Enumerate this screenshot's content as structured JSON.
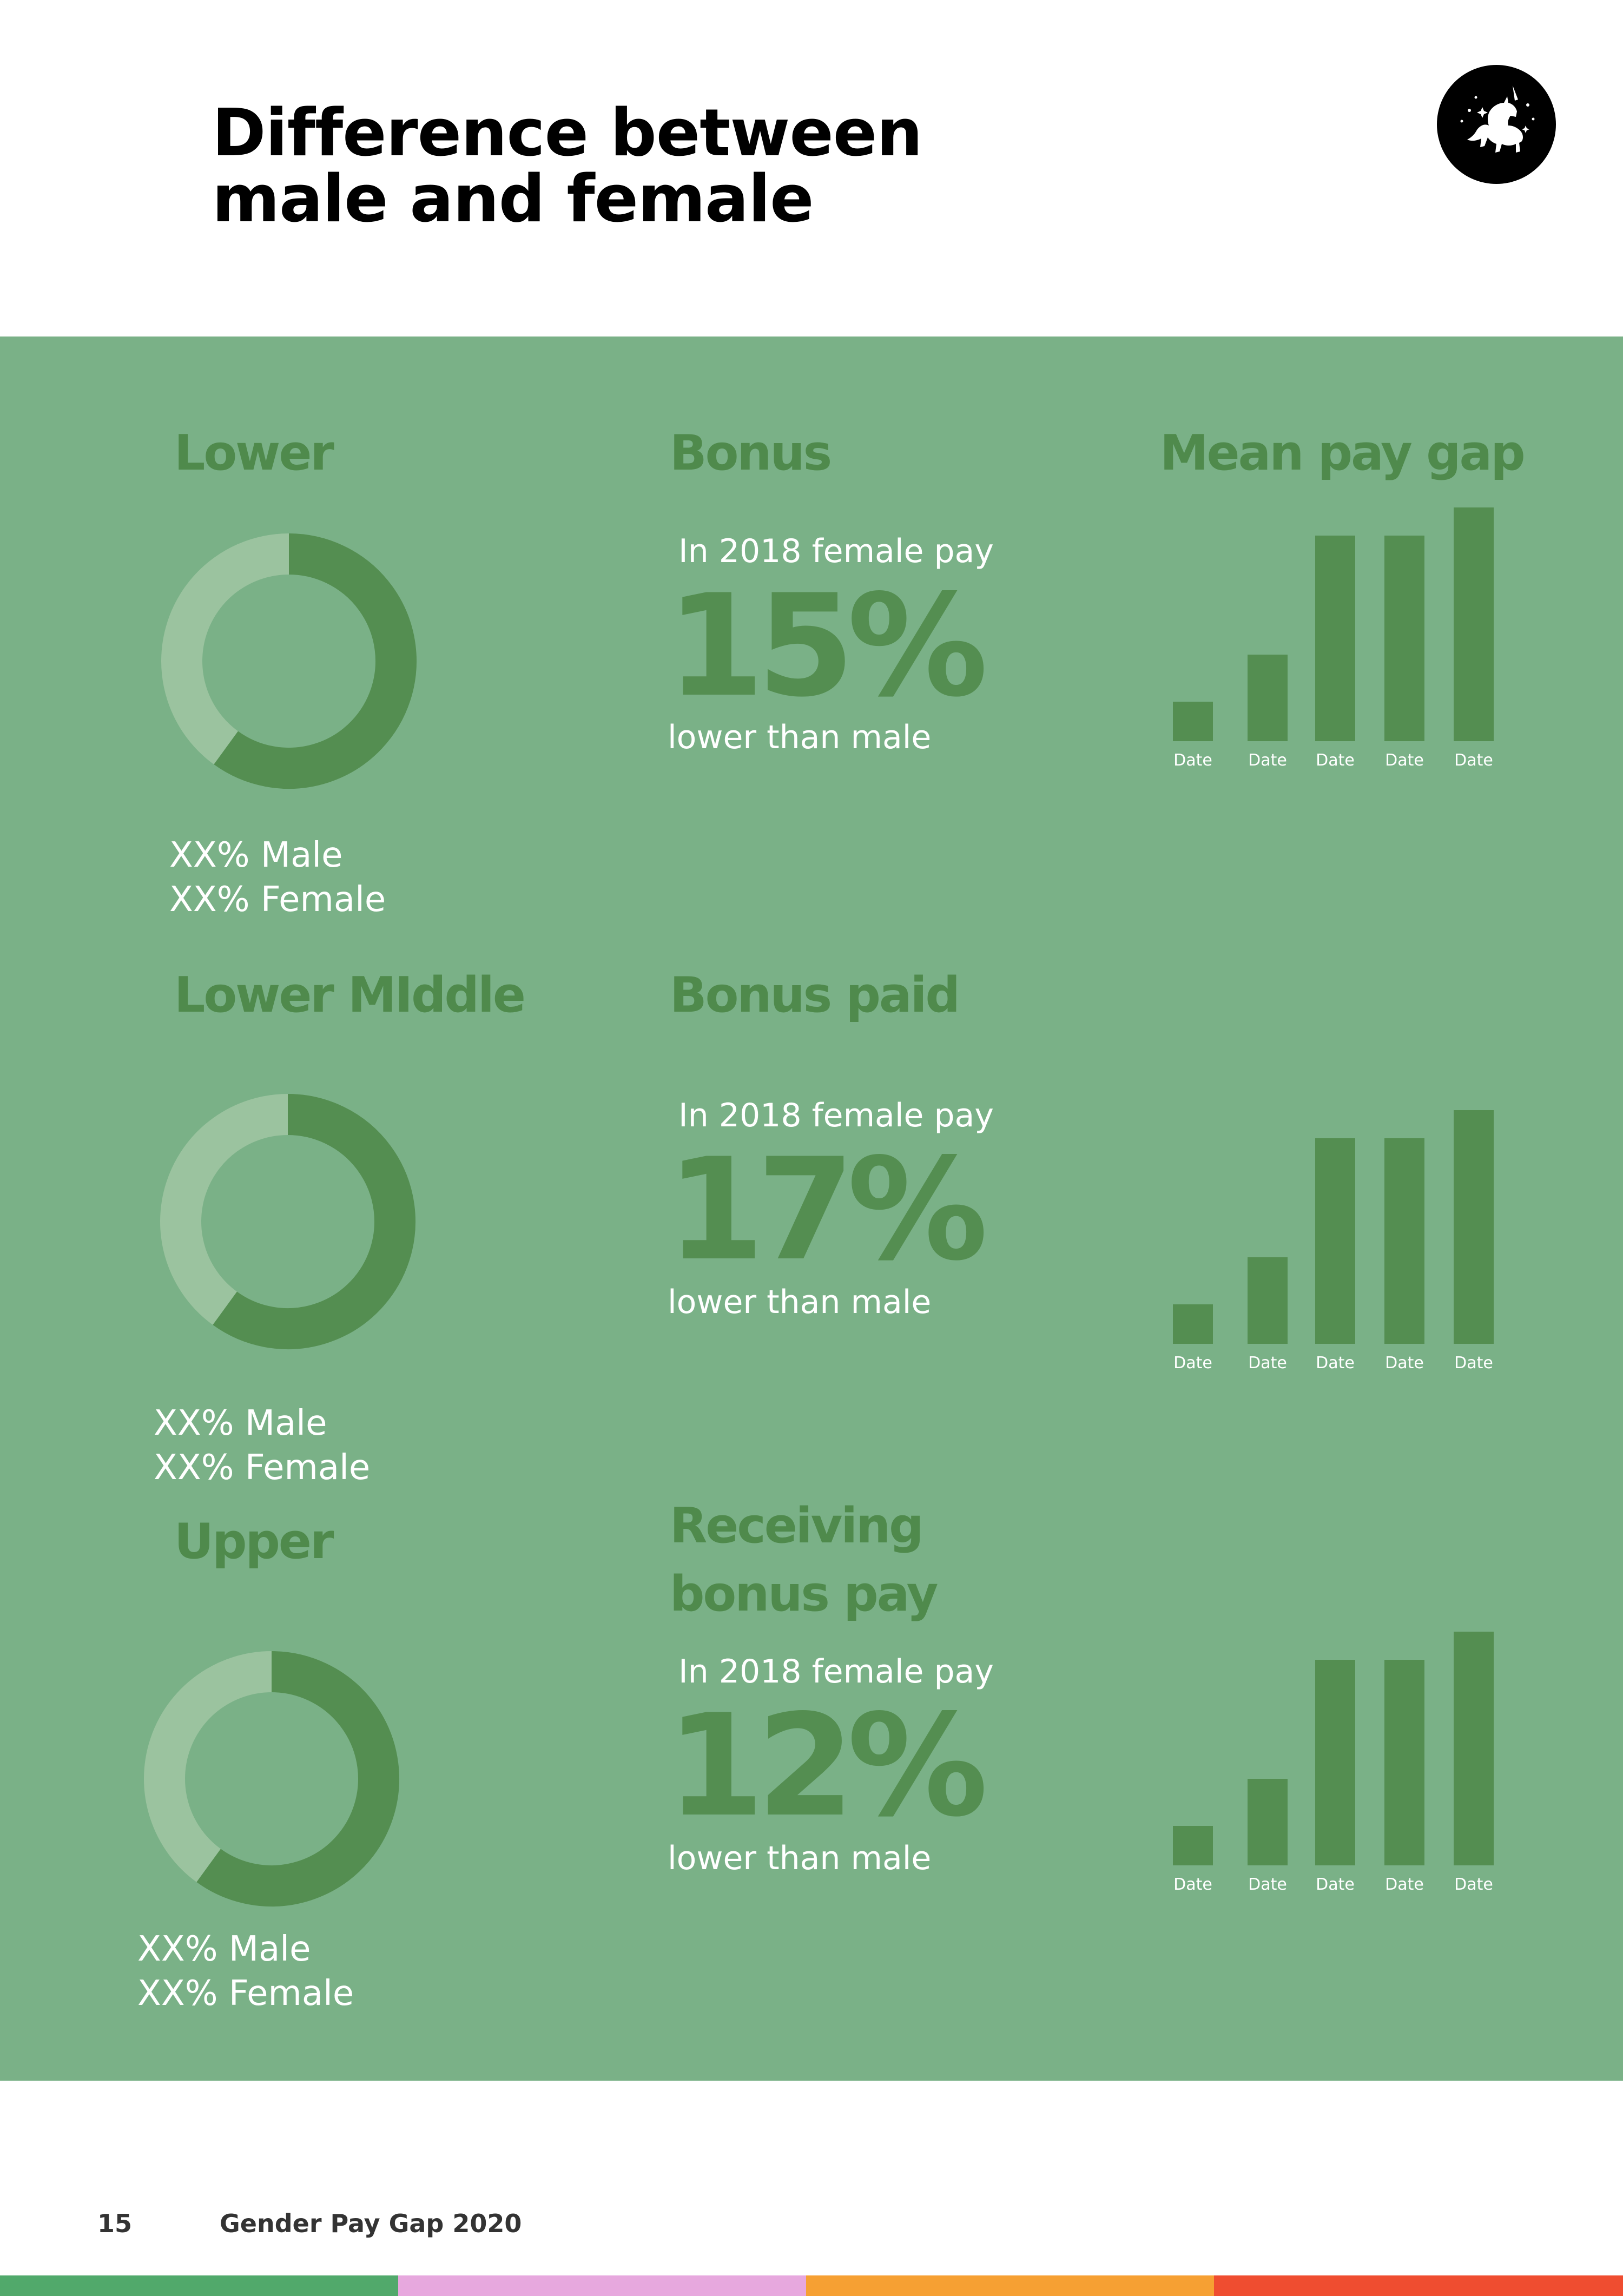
{
  "page": {
    "title_line1": "Difference between",
    "title_line2": "male and female"
  },
  "logo": {
    "icon": "unicorn-icon"
  },
  "colors": {
    "panel": "#7ab187",
    "accent_dark": "#548e51",
    "accent_light": "#9bc39f",
    "stripe_green": "#51a96b",
    "stripe_pink": "#e7a8de",
    "stripe_orange": "#f6a033",
    "stripe_red": "#ef4d30"
  },
  "left_column": [
    {
      "label": "Lower",
      "legend_male": "XX% Male",
      "legend_female": "XX% Female"
    },
    {
      "label": "Lower MIddle",
      "legend_male": "XX% Male",
      "legend_female": "XX% Female"
    },
    {
      "label": "Upper",
      "legend_male": "XX% Male",
      "legend_female": "XX% Female"
    }
  ],
  "middle_column": [
    {
      "label_lines": [
        "Bonus"
      ],
      "pre": "In 2018 female pay",
      "value": "15%",
      "post": "lower than male"
    },
    {
      "label_lines": [
        "Bonus paid"
      ],
      "pre": "In 2018 female pay",
      "value": "17%",
      "post": "lower than male"
    },
    {
      "label_lines": [
        "Receiving",
        "bonus pay"
      ],
      "pre": "In 2018 female pay",
      "value": "12%",
      "post": "lower than male"
    }
  ],
  "right_column": {
    "label": "Mean pay gap"
  },
  "chart_data": [
    {
      "type": "pie",
      "title": "Lower",
      "values": [
        60,
        40
      ]
    },
    {
      "type": "pie",
      "title": "Lower MIddle",
      "values": [
        60,
        40
      ]
    },
    {
      "type": "pie",
      "title": "Upper",
      "values": [
        60,
        40
      ]
    },
    {
      "type": "bar",
      "title": "Mean pay gap",
      "categories": [
        "Date",
        "Date",
        "Date",
        "Date",
        "Date"
      ],
      "values": [
        17,
        37,
        88,
        88,
        100
      ],
      "ylim": [
        0,
        100
      ]
    },
    {
      "type": "bar",
      "title": "",
      "categories": [
        "Date",
        "Date",
        "Date",
        "Date",
        "Date"
      ],
      "values": [
        17,
        37,
        88,
        88,
        100
      ],
      "ylim": [
        0,
        100
      ]
    },
    {
      "type": "bar",
      "title": "",
      "categories": [
        "Date",
        "Date",
        "Date",
        "Date",
        "Date"
      ],
      "values": [
        17,
        37,
        88,
        88,
        100
      ],
      "ylim": [
        0,
        100
      ]
    }
  ],
  "footer": {
    "page_number": "15",
    "title": "Gender Pay Gap 2020"
  }
}
